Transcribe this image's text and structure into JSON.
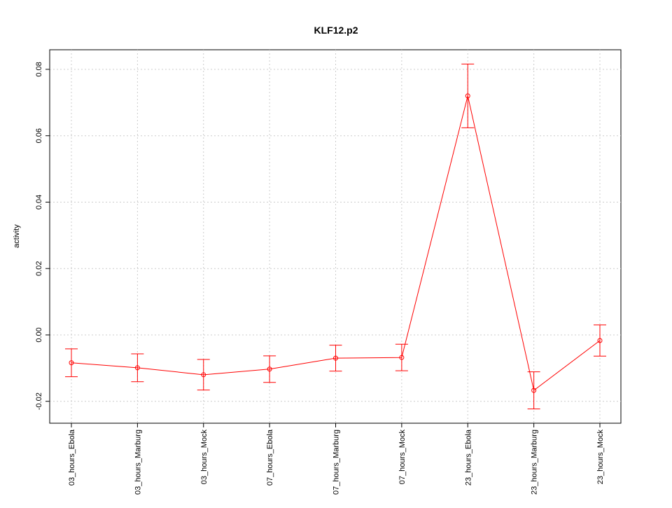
{
  "chart_data": {
    "type": "line",
    "title": "KLF12.p2",
    "ylabel": "activity",
    "categories": [
      "03_hours_Ebola",
      "03_hours_Marburg",
      "03_hours_Mock",
      "07_hours_Ebola",
      "07_hours_Marburg",
      "07_hours_Mock",
      "23_hours_Ebola",
      "23_hours_Marburg",
      "23_hours_Mock"
    ],
    "series": [
      {
        "color": "#ff0000",
        "values": [
          -0.0084,
          -0.0099,
          -0.012,
          -0.0103,
          -0.007,
          -0.0068,
          0.072,
          -0.0167,
          -0.0017
        ],
        "errors": [
          0.0042,
          0.0042,
          0.0046,
          0.004,
          0.0039,
          0.004,
          0.0096,
          0.0056,
          0.0047
        ]
      }
    ],
    "ylim": [
      -0.0266,
      0.0859
    ],
    "yticks": [
      -0.02,
      {
        "value": 0,
        "label": "0.00"
      },
      0.02,
      0.04,
      0.06,
      0.08
    ],
    "grid": true
  }
}
